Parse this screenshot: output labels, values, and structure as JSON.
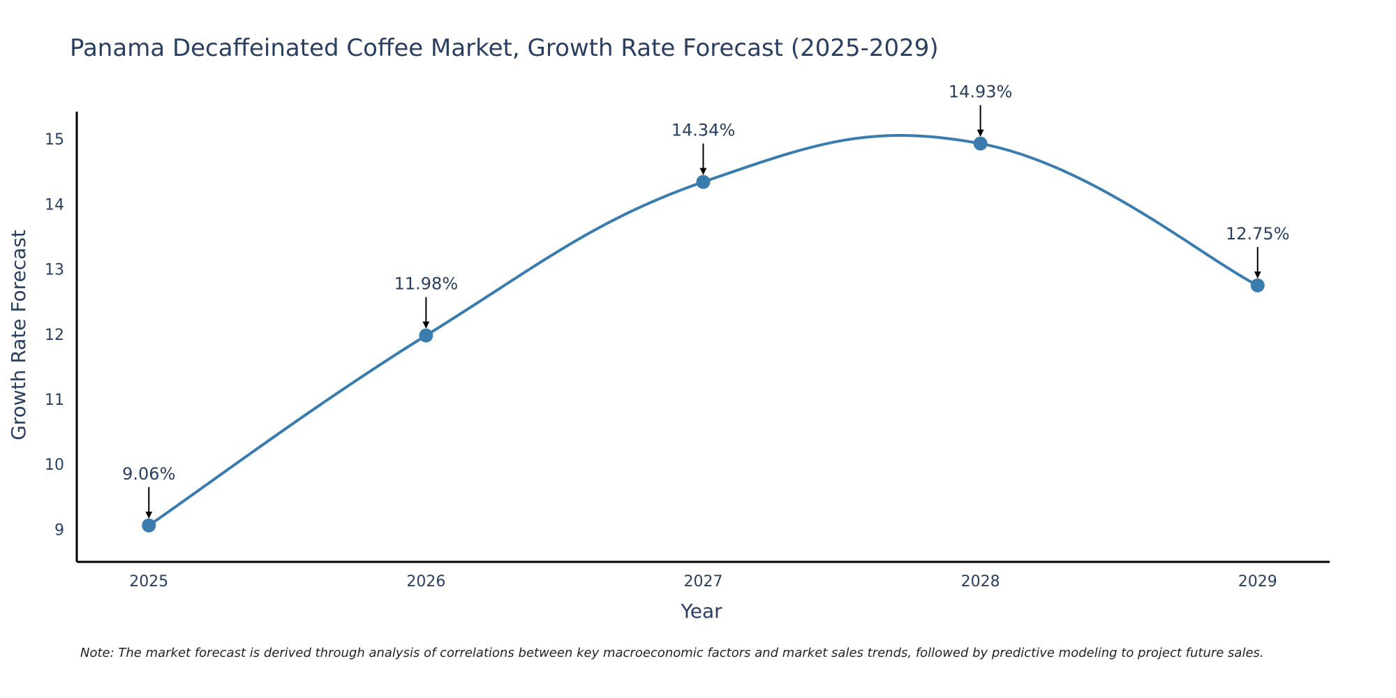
{
  "colors": {
    "text": "#2a3f5f",
    "line": "#3a7cad",
    "axis": "#000000",
    "arrow": "#000000",
    "background": "#ffffff",
    "note": "#222222"
  },
  "chart_data": {
    "type": "line",
    "title": "Panama Decaffeinated Coffee Market, Growth Rate Forecast (2025-2029)",
    "xlabel": "Year",
    "ylabel": "Growth Rate Forecast",
    "categories": [
      "2025",
      "2026",
      "2027",
      "2028",
      "2029"
    ],
    "series": [
      {
        "name": "Growth Rate Forecast",
        "values": [
          9.06,
          11.98,
          14.34,
          14.93,
          12.75
        ],
        "labels": [
          "9.06%",
          "11.98%",
          "14.34%",
          "14.93%",
          "12.75%"
        ]
      }
    ],
    "x_range": [
      2024.74,
      2029.26
    ],
    "ylim": [
      8.5,
      15.42
    ],
    "y_ticks": [
      9,
      10,
      11,
      12,
      13,
      14,
      15
    ],
    "line_shape": "spline",
    "markers": true,
    "grid": false,
    "legend": "none",
    "note": "Note: The market forecast is derived through analysis of correlations between key macroeconomic factors and market sales trends, followed by predictive modeling to project future sales."
  }
}
